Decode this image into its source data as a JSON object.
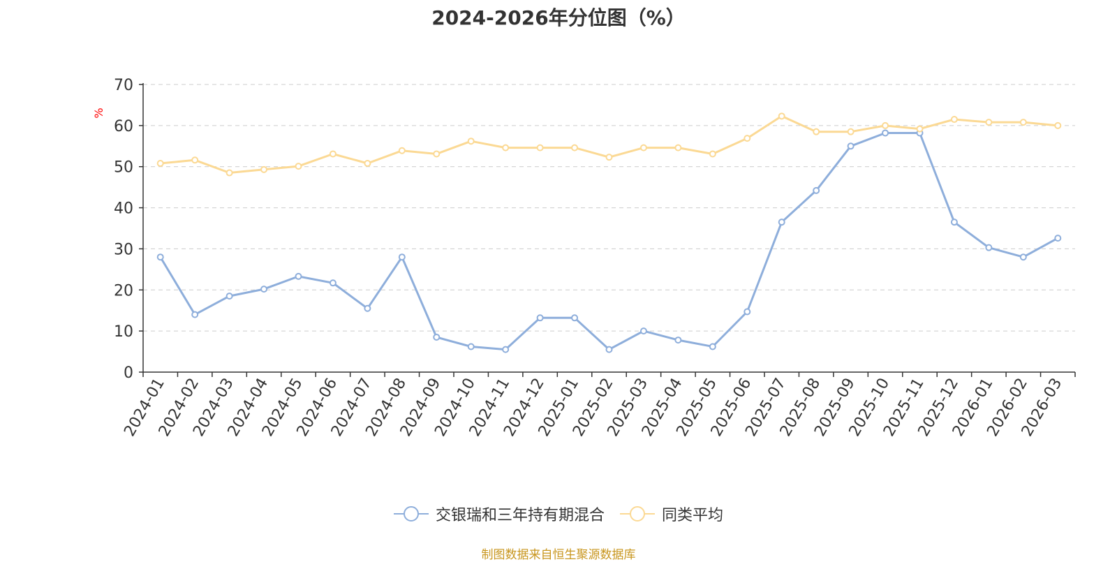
{
  "chart_data": {
    "type": "line",
    "title": "2024-2026年分位图（%）",
    "ylabel": "%",
    "xlabel": "",
    "ylim": [
      0,
      70
    ],
    "yticks": [
      0,
      10,
      20,
      30,
      40,
      50,
      60,
      70
    ],
    "grid": true,
    "legend_position": "bottom",
    "categories": [
      "2024-01",
      "2024-02",
      "2024-03",
      "2024-04",
      "2024-05",
      "2024-06",
      "2024-07",
      "2024-08",
      "2024-09",
      "2024-10",
      "2024-11",
      "2024-12",
      "2025-01",
      "2025-02",
      "2025-03",
      "2025-04",
      "2025-05",
      "2025-06",
      "2025-07",
      "2025-08",
      "2025-09",
      "2025-10",
      "2025-11",
      "2025-12",
      "2026-01",
      "2026-02",
      "2026-03"
    ],
    "series": [
      {
        "name": "交银瑞和三年持有期混合",
        "color": "#8eaedb",
        "values": [
          28,
          14,
          18.5,
          20.2,
          23.3,
          21.7,
          15.5,
          28,
          8.5,
          6.2,
          5.5,
          13.2,
          13.2,
          5.5,
          10,
          7.8,
          6.2,
          14.7,
          36.5,
          44.2,
          55,
          58.2,
          58.2,
          36.5,
          30.3,
          28,
          32.6
        ]
      },
      {
        "name": "同类平均",
        "color": "#fbd994",
        "values": [
          50.8,
          51.6,
          48.5,
          49.3,
          50.1,
          53.1,
          50.8,
          53.9,
          53.1,
          56.2,
          54.6,
          54.6,
          54.6,
          52.3,
          54.6,
          54.6,
          53.1,
          56.9,
          62.3,
          58.5,
          58.5,
          60,
          59.2,
          61.5,
          60.8,
          60.8,
          60
        ]
      }
    ]
  },
  "footer": {
    "source_text": "制图数据来自恒生聚源数据库",
    "source_color": "#c8961e"
  },
  "style": {
    "axis_color": "#333333",
    "grid_color": "#cccccc",
    "ylabel_color": "#ff0000"
  }
}
